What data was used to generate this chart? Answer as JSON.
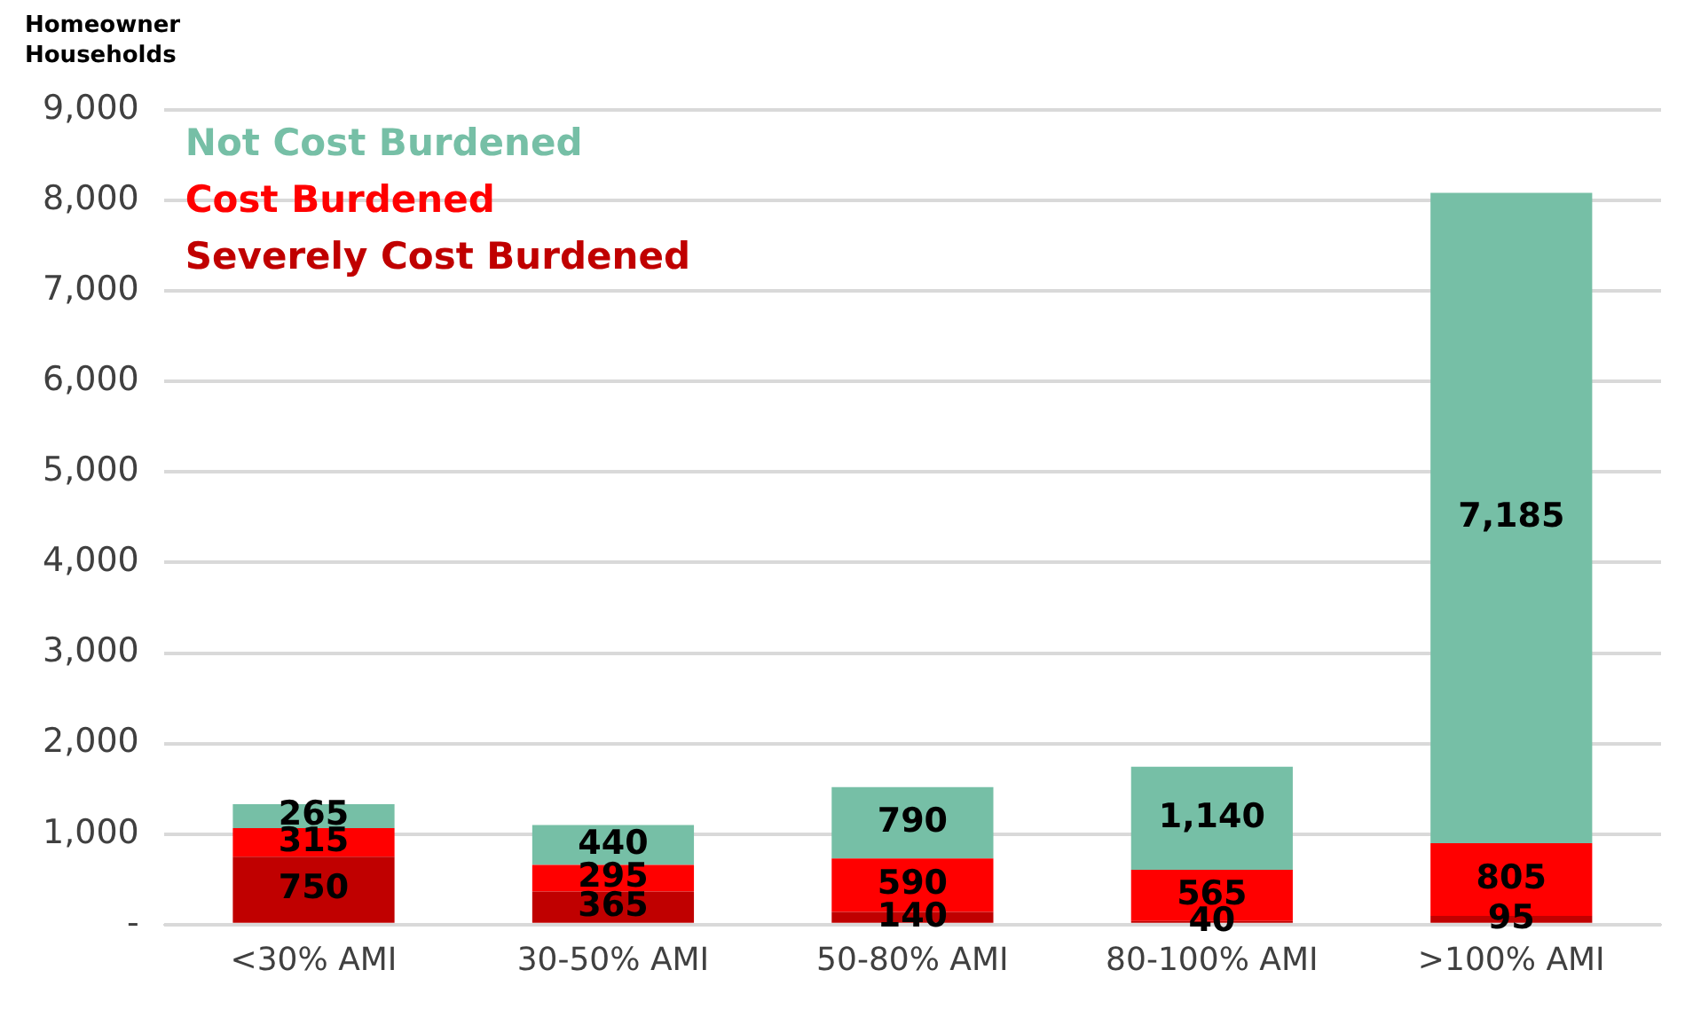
{
  "chart_data": {
    "type": "bar",
    "ylabel": "Homeowner Households",
    "categories": [
      "<30% AMI",
      "30-50% AMI",
      "50-80% AMI",
      "80-100% AMI",
      ">100% AMI"
    ],
    "series": [
      {
        "name": "Severely Cost Burdened",
        "color": "#c00000",
        "values": [
          750,
          365,
          140,
          40,
          95
        ],
        "value_labels": [
          "750",
          "365",
          "140",
          "40",
          "95"
        ]
      },
      {
        "name": "Cost Burdened",
        "color": "#ff0000",
        "values": [
          315,
          295,
          590,
          565,
          805
        ],
        "value_labels": [
          "315",
          "295",
          "590",
          "565",
          "805"
        ]
      },
      {
        "name": "Not Cost Burdened",
        "color": "#76bfa6",
        "values": [
          265,
          440,
          790,
          1140,
          7185
        ],
        "value_labels": [
          "265",
          "440",
          "790",
          "1,140",
          "7,185"
        ]
      }
    ],
    "stacked": true,
    "ylim": [
      0,
      9000
    ],
    "yticks": [
      {
        "value": 0,
        "label": "-"
      },
      {
        "value": 1000,
        "label": "1,000"
      },
      {
        "value": 2000,
        "label": "2,000"
      },
      {
        "value": 3000,
        "label": "3,000"
      },
      {
        "value": 4000,
        "label": "4,000"
      },
      {
        "value": 5000,
        "label": "5,000"
      },
      {
        "value": 6000,
        "label": "6,000"
      },
      {
        "value": 7000,
        "label": "7,000"
      },
      {
        "value": 8000,
        "label": "8,000"
      },
      {
        "value": 9000,
        "label": "9,000"
      }
    ],
    "grid": "y",
    "legend": "top left"
  }
}
